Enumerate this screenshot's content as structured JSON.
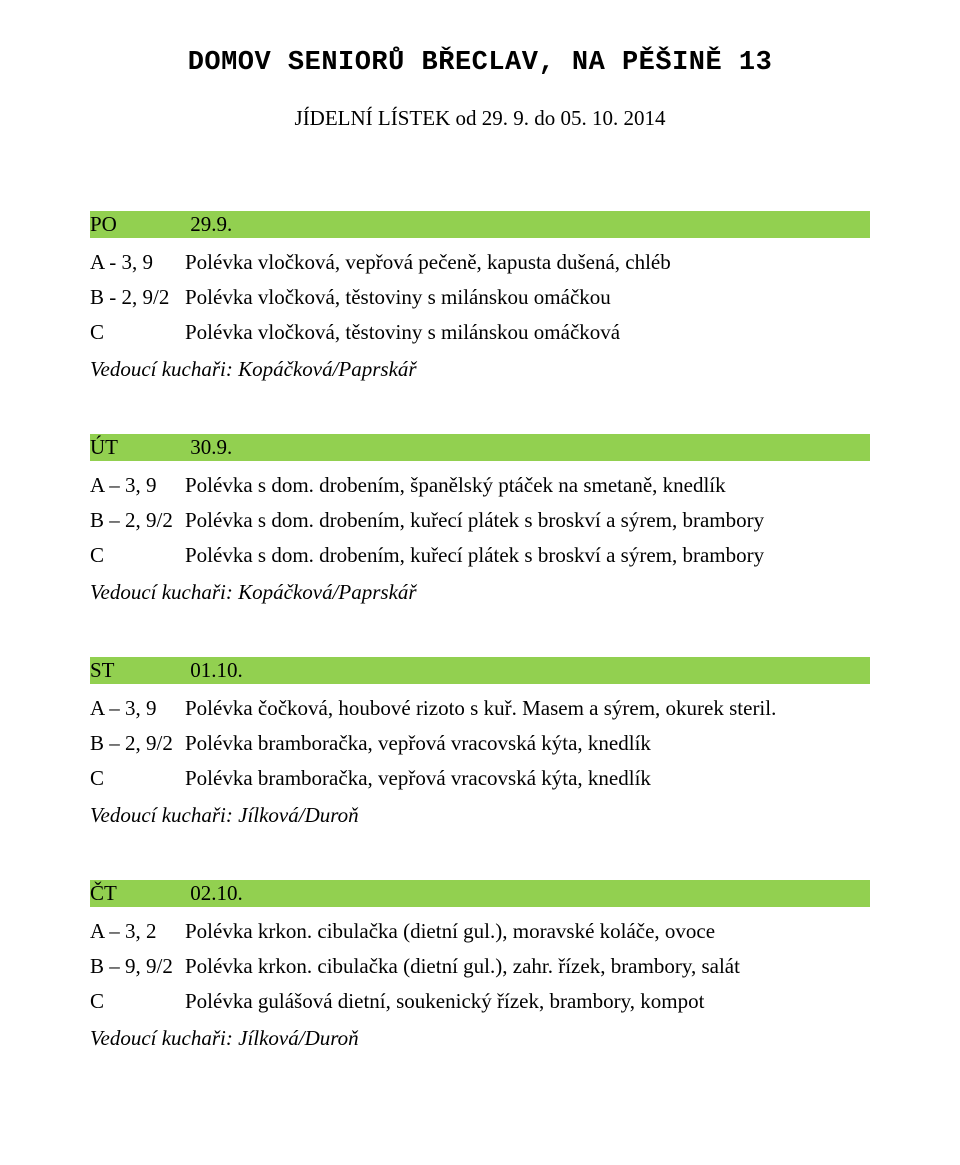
{
  "colors": {
    "day_row_bg": "#92d050",
    "text": "#000000",
    "background": "#ffffff"
  },
  "header": {
    "title": "DOMOV SENIORŮ BŘECLAV, NA PĚŠINĚ 13",
    "subtitle": "JÍDELNÍ LÍSTEK od 29. 9. do 05. 10. 2014"
  },
  "blocks": [
    {
      "day_abbr": "PO",
      "day_date": "29.9.",
      "rows": [
        {
          "code": "A - 3, 9",
          "desc": "Polévka vločková, vepřová pečeně, kapusta dušená, chléb"
        },
        {
          "code": "B  - 2, 9/2",
          "desc": "Polévka vločková, těstoviny s milánskou omáčkou"
        },
        {
          "code": " C",
          "desc": "Polévka vločková, těstoviny s milánskou omáčková"
        }
      ],
      "chefs": "Vedoucí kuchaři: Kopáčková/Paprskář"
    },
    {
      "day_abbr": "ÚT",
      "day_date": "30.9.",
      "rows": [
        {
          "code": "A – 3, 9",
          "desc": "Polévka s dom. drobením, španělský ptáček na smetaně, knedlík"
        },
        {
          "code": "B – 2, 9/2",
          "desc": "Polévka s dom. drobením, kuřecí plátek s broskví a sýrem, brambory"
        },
        {
          "code": " C",
          "desc": "Polévka s dom. drobením, kuřecí plátek s broskví a sýrem, brambory"
        }
      ],
      "chefs": "Vedoucí kuchaři: Kopáčková/Paprskář"
    },
    {
      "day_abbr": "ST",
      "day_date": "01.10.",
      "rows": [
        {
          "code": "A – 3, 9",
          "desc": "Polévka čočková, houbové rizoto s kuř. Masem a sýrem, okurek steril."
        },
        {
          "code": "B – 2, 9/2",
          "desc": "Polévka bramboračka, vepřová vracovská kýta, knedlík"
        },
        {
          "code": " C",
          "desc": "Polévka bramboračka, vepřová vracovská kýta, knedlík"
        }
      ],
      "chefs": "Vedoucí kuchaři: Jílková/Duroň"
    },
    {
      "day_abbr": "ČT",
      "day_date": "02.10.",
      "rows": [
        {
          "code": "A – 3, 2",
          "desc": "Polévka krkon. cibulačka (dietní gul.), moravské koláče, ovoce"
        },
        {
          "code": "B – 9, 9/2",
          "desc": "Polévka krkon. cibulačka (dietní gul.), zahr. řízek, brambory, salát"
        },
        {
          "code": "C",
          "desc": "Polévka gulášová dietní, soukenický řízek, brambory, kompot"
        }
      ],
      "chefs": "Vedoucí kuchaři: Jílková/Duroň"
    }
  ]
}
